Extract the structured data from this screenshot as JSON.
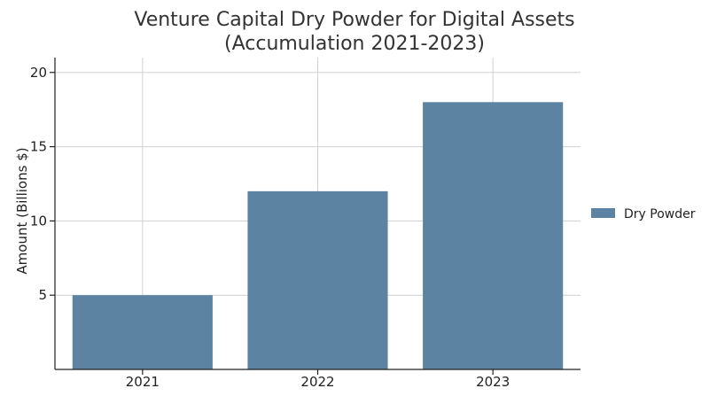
{
  "chart_data": {
    "type": "bar",
    "title": "Venture Capital Dry Powder for Digital Assets",
    "subtitle": "(Accumulation 2021-2023)",
    "xlabel": "",
    "ylabel": "Amount (Billions $)",
    "categories": [
      "2021",
      "2022",
      "2023"
    ],
    "series": [
      {
        "name": "Dry Powder",
        "values": [
          5,
          12,
          18
        ]
      }
    ],
    "ylim": [
      0,
      21
    ],
    "yticks": [
      5,
      10,
      15,
      20
    ],
    "grid": true,
    "legend_position": "right",
    "colors": {
      "bar": "#5d83a3"
    }
  }
}
